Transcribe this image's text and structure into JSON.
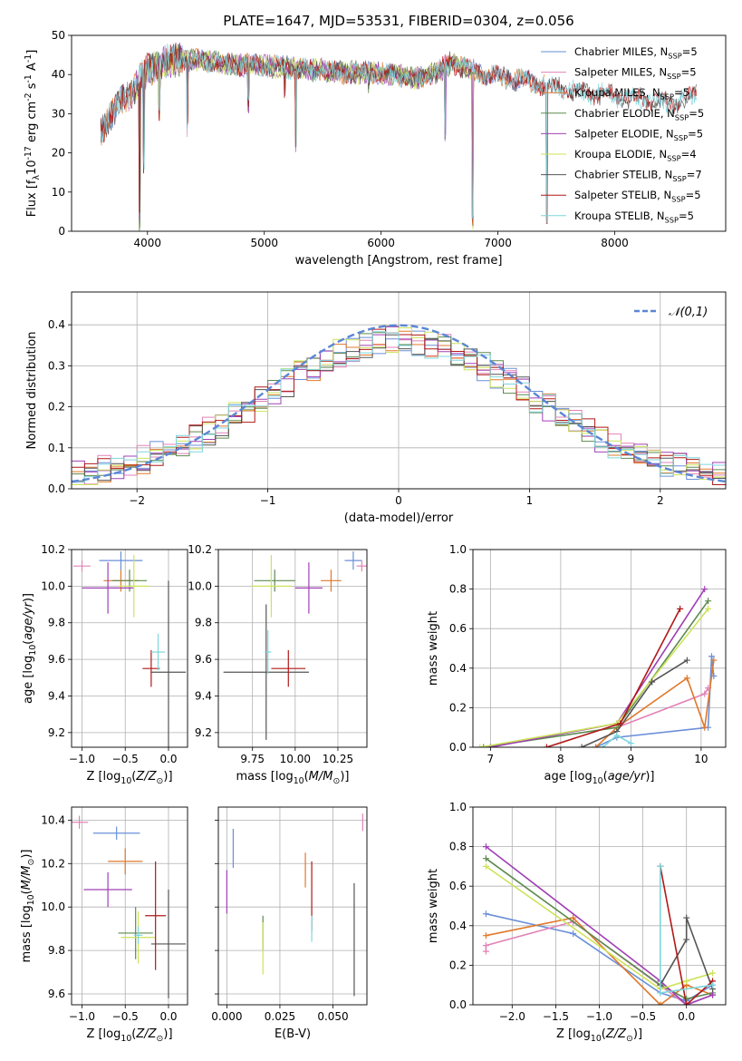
{
  "chart_data": [
    {
      "id": "spectrum",
      "type": "line",
      "title": "PLATE=1647, MJD=53531, FIBERID=0304, z=0.056",
      "xlabel": "wavelength [Angstrom, rest frame]",
      "ylabel": "Flux [f$_\\lambda$10$^{-17}$ erg cm$^{-2}$ s$^{-1}$ A$^{-1}$]",
      "xlim": [
        3350,
        8950
      ],
      "ylim": [
        0,
        50
      ],
      "xticks": [
        4000,
        5000,
        6000,
        7000,
        8000
      ],
      "yticks": [
        0,
        10,
        20,
        30,
        40,
        50
      ],
      "grid": false,
      "legend": "right",
      "continuum": {
        "x": [
          3600,
          3700,
          3800,
          3900,
          4000,
          4100,
          4300,
          4500,
          4700,
          4900,
          5100,
          5300,
          5500,
          5700,
          5900,
          6100,
          6300,
          6500,
          6600,
          6700,
          6900,
          7100,
          7300,
          7500,
          7700,
          7900,
          8100,
          8300,
          8500,
          8700
        ],
        "y": [
          26,
          30,
          34,
          37,
          41,
          43,
          44,
          43.5,
          42.5,
          42.5,
          42,
          41.5,
          41,
          40.5,
          40.5,
          40,
          39,
          41,
          43,
          42,
          40,
          39,
          38,
          36.5,
          35.5,
          35,
          34,
          33.5,
          32.5,
          35
        ]
      },
      "series": [
        {
          "name": "Chabrier MILES, N$_{SSP}$=5",
          "color": "#6a8fd8",
          "xrange": [
            3600,
            7400
          ]
        },
        {
          "name": "Salpeter MILES, N$_{SSP}$=5",
          "color": "#e282b7",
          "xrange": [
            3600,
            7400
          ]
        },
        {
          "name": "Kroupa MILES, N$_{SSP}$=5",
          "color": "#e0782a",
          "xrange": [
            3600,
            7400
          ]
        },
        {
          "name": "Chabrier ELODIE, N$_{SSP}$=5",
          "color": "#5d8a4f",
          "xrange": [
            3900,
            6800
          ]
        },
        {
          "name": "Salpeter ELODIE, N$_{SSP}$=5",
          "color": "#a040b5",
          "xrange": [
            3900,
            6800
          ]
        },
        {
          "name": "Kroupa ELODIE, N$_{SSP}$=4",
          "color": "#cce35a",
          "xrange": [
            3900,
            6800
          ]
        },
        {
          "name": "Chabrier STELIB, N$_{SSP}$=7",
          "color": "#555555",
          "xrange": [
            3600,
            8700
          ]
        },
        {
          "name": "Salpeter STELIB, N$_{SSP}$=5",
          "color": "#b01818",
          "xrange": [
            3600,
            8700
          ]
        },
        {
          "name": "Kroupa STELIB, N$_{SSP}$=5",
          "color": "#7fd5dd",
          "xrange": [
            3600,
            8700
          ]
        }
      ],
      "dips": [
        {
          "x": 3934,
          "y": 0
        },
        {
          "x": 3968,
          "y": 14
        },
        {
          "x": 4101,
          "y": 28
        },
        {
          "x": 4340,
          "y": 24
        },
        {
          "x": 4861,
          "y": 30
        },
        {
          "x": 5175,
          "y": 34
        },
        {
          "x": 5270,
          "y": 18
        },
        {
          "x": 5893,
          "y": 34
        },
        {
          "x": 6550,
          "y": 22
        },
        {
          "x": 6785,
          "y": 0
        },
        {
          "x": 7420,
          "y": 0
        }
      ]
    },
    {
      "id": "residuals",
      "type": "step",
      "xlabel": "(data-model)/error",
      "ylabel": "Normed distribution",
      "xlim": [
        -2.5,
        2.5
      ],
      "ylim": [
        0,
        0.48
      ],
      "xticks": [
        -2,
        -1,
        0,
        1,
        2
      ],
      "yticks": [
        0.0,
        0.1,
        0.2,
        0.3,
        0.4
      ],
      "grid": true,
      "legend": "top-right",
      "reference": {
        "name": "$\\mathcal{N}(0,1)$",
        "color": "#5b86d6"
      },
      "bins": 50
    },
    {
      "id": "age-vs-Z",
      "type": "errorbar",
      "xlabel": "Z [log$_{10}$($Z/Z_\\odot$)]",
      "ylabel": "age  [log$_{10}$($age/yr$)]",
      "xlim": [
        -1.12,
        0.22
      ],
      "ylim": [
        9.12,
        10.2
      ],
      "xticks": [
        -1.0,
        -0.5,
        0.0
      ],
      "yticks": [
        9.2,
        9.4,
        9.6,
        9.8,
        10.0,
        10.2
      ],
      "grid": true,
      "points": [
        {
          "x": -0.55,
          "y": 10.14,
          "xerr": 0.25,
          "yerr": 0.05
        },
        {
          "x": -1.0,
          "y": 10.11,
          "xerr": 0.1,
          "yerr": 0.03
        },
        {
          "x": -0.55,
          "y": 10.03,
          "xerr": 0.2,
          "yerr": 0.06
        },
        {
          "x": -0.45,
          "y": 10.03,
          "xerr": 0.2,
          "yerr": 0.06
        },
        {
          "x": -0.7,
          "y": 9.99,
          "xerr": 0.3,
          "yerr": 0.14
        },
        {
          "x": -0.4,
          "y": 10.0,
          "xerr": 0.18,
          "yerr": 0.17
        },
        {
          "x": 0.0,
          "y": 9.53,
          "xerr": 0.2,
          "yerr": 0.5
        },
        {
          "x": -0.2,
          "y": 9.55,
          "xerr": 0.1,
          "yerr": 0.1
        },
        {
          "x": -0.12,
          "y": 9.64,
          "xerr": 0.08,
          "yerr": 0.1
        }
      ]
    },
    {
      "id": "age-vs-mass",
      "type": "errorbar",
      "xlabel": "mass [log$_{10}$($M/M_\\odot$)]",
      "ylabel": "",
      "xlim": [
        9.55,
        10.42
      ],
      "ylim": [
        9.12,
        10.2
      ],
      "xticks": [
        9.75,
        10.0,
        10.25
      ],
      "yticks": [
        9.2,
        9.4,
        9.6,
        9.8,
        10.0,
        10.2
      ],
      "grid": true,
      "points": [
        {
          "x": 10.34,
          "y": 10.14,
          "xerr": 0.05,
          "yerr": 0.05
        },
        {
          "x": 10.39,
          "y": 10.11,
          "xerr": 0.03,
          "yerr": 0.03
        },
        {
          "x": 10.21,
          "y": 10.03,
          "xerr": 0.06,
          "yerr": 0.06
        },
        {
          "x": 9.88,
          "y": 10.03,
          "xerr": 0.12,
          "yerr": 0.06
        },
        {
          "x": 10.08,
          "y": 9.99,
          "xerr": 0.08,
          "yerr": 0.14
        },
        {
          "x": 9.86,
          "y": 10.0,
          "xerr": 0.12,
          "yerr": 0.17
        },
        {
          "x": 9.83,
          "y": 9.53,
          "xerr": 0.25,
          "yerr": 0.37
        },
        {
          "x": 9.96,
          "y": 9.55,
          "xerr": 0.1,
          "yerr": 0.1
        },
        {
          "x": 9.84,
          "y": 9.64,
          "xerr": 0.02,
          "yerr": 0.12
        }
      ]
    },
    {
      "id": "massweight-vs-age",
      "type": "line",
      "xlabel": "age  [log$_{10}$($age/yr$)]",
      "ylabel": "mass weight",
      "xlim": [
        6.75,
        10.35
      ],
      "ylim": [
        0,
        1.0
      ],
      "xticks": [
        7,
        8,
        9,
        10
      ],
      "yticks": [
        0.0,
        0.2,
        0.4,
        0.6,
        0.8,
        1.0
      ],
      "grid": true,
      "series": [
        {
          "color": "#6a8fd8",
          "x": [
            8.5,
            8.8,
            10.1,
            10.15,
            10.18
          ],
          "y": [
            0.0,
            0.05,
            0.1,
            0.46,
            0.36
          ]
        },
        {
          "color": "#e282b7",
          "x": [
            8.8,
            10.05,
            10.1
          ],
          "y": [
            0.1,
            0.27,
            0.3
          ]
        },
        {
          "color": "#e0782a",
          "x": [
            8.5,
            8.8,
            9.8,
            10.05,
            10.18
          ],
          "y": [
            0.0,
            0.1,
            0.35,
            0.1,
            0.44
          ]
        },
        {
          "color": "#5d8a4f",
          "x": [
            6.9,
            8.8,
            10.1
          ],
          "y": [
            0.0,
            0.1,
            0.74
          ]
        },
        {
          "color": "#a040b5",
          "x": [
            7.0,
            8.8,
            10.05
          ],
          "y": [
            0.0,
            0.12,
            0.8
          ]
        },
        {
          "color": "#cce35a",
          "x": [
            6.85,
            8.8,
            10.1
          ],
          "y": [
            0.0,
            0.12,
            0.7
          ]
        },
        {
          "color": "#555555",
          "x": [
            8.3,
            8.8,
            9.3,
            9.8
          ],
          "y": [
            0.0,
            0.08,
            0.33,
            0.44
          ]
        },
        {
          "color": "#b01818",
          "x": [
            7.8,
            8.85,
            9.7
          ],
          "y": [
            0.0,
            0.12,
            0.7
          ]
        },
        {
          "color": "#7fd5dd",
          "x": [
            8.6,
            8.8,
            9.0
          ],
          "y": [
            0.0,
            0.06,
            0.02
          ]
        }
      ]
    },
    {
      "id": "mass-vs-Z",
      "type": "errorbar",
      "xlabel": "Z [log$_{10}$($Z/Z_\\odot$)]",
      "ylabel": "mass [log$_{10}$($M/M_\\odot$)]",
      "xlim": [
        -1.12,
        0.22
      ],
      "ylim": [
        9.55,
        10.46
      ],
      "xticks": [
        -1.0,
        -0.5,
        0.0
      ],
      "yticks": [
        9.6,
        9.8,
        10.0,
        10.2,
        10.4
      ],
      "grid": true,
      "points": [
        {
          "x": -0.6,
          "y": 10.34,
          "xerr": 0.27,
          "yerr": 0.03
        },
        {
          "x": -1.03,
          "y": 10.39,
          "xerr": 0.1,
          "yerr": 0.03
        },
        {
          "x": -0.5,
          "y": 10.21,
          "xerr": 0.2,
          "yerr": 0.06
        },
        {
          "x": -0.38,
          "y": 9.88,
          "xerr": 0.2,
          "yerr": 0.12
        },
        {
          "x": -0.7,
          "y": 10.08,
          "xerr": 0.28,
          "yerr": 0.08
        },
        {
          "x": -0.35,
          "y": 9.86,
          "xerr": 0.2,
          "yerr": 0.12
        },
        {
          "x": 0.0,
          "y": 9.83,
          "xerr": 0.2,
          "yerr": 0.25
        },
        {
          "x": -0.15,
          "y": 9.96,
          "xerr": 0.12,
          "yerr": 0.25
        },
        {
          "x": -0.35,
          "y": 9.87,
          "xerr": 0.05,
          "yerr": 0.04
        }
      ]
    },
    {
      "id": "mass-vs-ebv",
      "type": "errorbar",
      "xlabel": "E(B-V)",
      "ylabel": "",
      "xlim": [
        -0.004,
        0.066
      ],
      "ylim": [
        9.55,
        10.46
      ],
      "xticks": [
        0.0,
        0.025,
        0.05
      ],
      "ytick_values": [
        9.6,
        9.8,
        10.0,
        10.2,
        10.4
      ],
      "grid": true,
      "points": [
        {
          "x": 0.003,
          "y": 10.27,
          "yerr": 0.09
        },
        {
          "x": 0.064,
          "y": 10.39,
          "yerr": 0.04
        },
        {
          "x": 0.037,
          "y": 10.17,
          "yerr": 0.08
        },
        {
          "x": 0.017,
          "y": 9.88,
          "yerr": 0.08
        },
        {
          "x": 0.0,
          "y": 10.07,
          "yerr": 0.1
        },
        {
          "x": 0.017,
          "y": 9.81,
          "yerr": 0.12
        },
        {
          "x": 0.06,
          "y": 9.85,
          "yerr": 0.26
        },
        {
          "x": 0.04,
          "y": 10.05,
          "yerr": 0.16
        },
        {
          "x": 0.04,
          "y": 9.9,
          "yerr": 0.06
        }
      ]
    },
    {
      "id": "massweight-vs-Z",
      "type": "line",
      "xlabel": "Z [log$_{10}$($Z/Z_\\odot$)]",
      "ylabel": "mass weight",
      "xlim": [
        -2.45,
        0.45
      ],
      "ylim": [
        0,
        1.0
      ],
      "xticks": [
        -2.0,
        -1.5,
        -1.0,
        -0.5,
        0.0
      ],
      "yticks": [
        0.0,
        0.2,
        0.4,
        0.6,
        0.8,
        1.0
      ],
      "grid": true,
      "series": [
        {
          "color": "#6a8fd8",
          "x": [
            -2.3,
            -1.3,
            -0.3,
            0.0,
            0.3
          ],
          "y": [
            0.46,
            0.36,
            0.06,
            0.02,
            0.1
          ]
        },
        {
          "color": "#e282b7",
          "x": [
            -2.3,
            -2.3,
            -1.3,
            0.0,
            0.3
          ],
          "y": [
            0.27,
            0.3,
            0.42,
            0.0,
            0.05
          ]
        },
        {
          "color": "#e0782a",
          "x": [
            -2.3,
            -1.3,
            -0.3,
            0.0,
            0.3
          ],
          "y": [
            0.35,
            0.44,
            0.0,
            0.1,
            0.05
          ]
        },
        {
          "color": "#5d8a4f",
          "x": [
            -2.3,
            -0.3,
            0.0,
            0.3
          ],
          "y": [
            0.74,
            0.1,
            0.03,
            0.06
          ]
        },
        {
          "color": "#a040b5",
          "x": [
            -2.3,
            -0.3,
            0.0,
            0.3
          ],
          "y": [
            0.8,
            0.12,
            0.0,
            0.05
          ]
        },
        {
          "color": "#cce35a",
          "x": [
            -2.3,
            -0.3,
            0.0,
            0.3
          ],
          "y": [
            0.7,
            0.08,
            0.12,
            0.16
          ]
        },
        {
          "color": "#555555",
          "x": [
            -0.3,
            0.0,
            0.0,
            0.3
          ],
          "y": [
            0.1,
            0.33,
            0.44,
            0.08
          ]
        },
        {
          "color": "#b01818",
          "x": [
            -0.3,
            0.0,
            0.3
          ],
          "y": [
            0.7,
            0.0,
            0.12
          ]
        },
        {
          "color": "#7fd5dd",
          "x": [
            -0.3,
            -0.3,
            0.3
          ],
          "y": [
            0.7,
            0.06,
            0.1
          ]
        }
      ]
    }
  ]
}
